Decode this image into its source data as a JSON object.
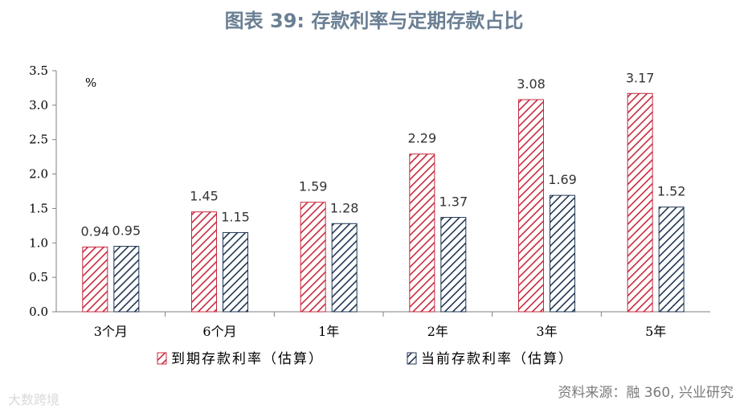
{
  "title": "图表 39: 存款利率与定期存款占比",
  "source": "资料来源：融 360, 兴业研究",
  "watermark": "大数跨境",
  "colors": {
    "series1": "#c8283c",
    "series2": "#1f3552",
    "axis": "#808080",
    "text": "#000000",
    "label": "#333333"
  },
  "chart_data": {
    "type": "bar",
    "categories": [
      "3个月",
      "6个月",
      "1年",
      "2年",
      "3年",
      "5年"
    ],
    "unit_label": "%",
    "ylim": [
      0,
      3.5
    ],
    "yticks": [
      "0.0",
      "0.5",
      "1.0",
      "1.5",
      "2.0",
      "2.5",
      "3.0",
      "3.5"
    ],
    "grid": false,
    "legend_position": "bottom",
    "series": [
      {
        "name": "到期存款利率（估算）",
        "values": [
          0.94,
          1.45,
          1.59,
          2.29,
          3.08,
          3.17
        ],
        "labels": [
          "0.94",
          "1.45",
          "1.59",
          "2.29",
          "3.08",
          "3.17"
        ]
      },
      {
        "name": "当前存款利率（估算）",
        "values": [
          0.95,
          1.15,
          1.28,
          1.37,
          1.69,
          1.52
        ],
        "labels": [
          "0.95",
          "1.15",
          "1.28",
          "1.37",
          "1.69",
          "1.52"
        ]
      }
    ]
  }
}
